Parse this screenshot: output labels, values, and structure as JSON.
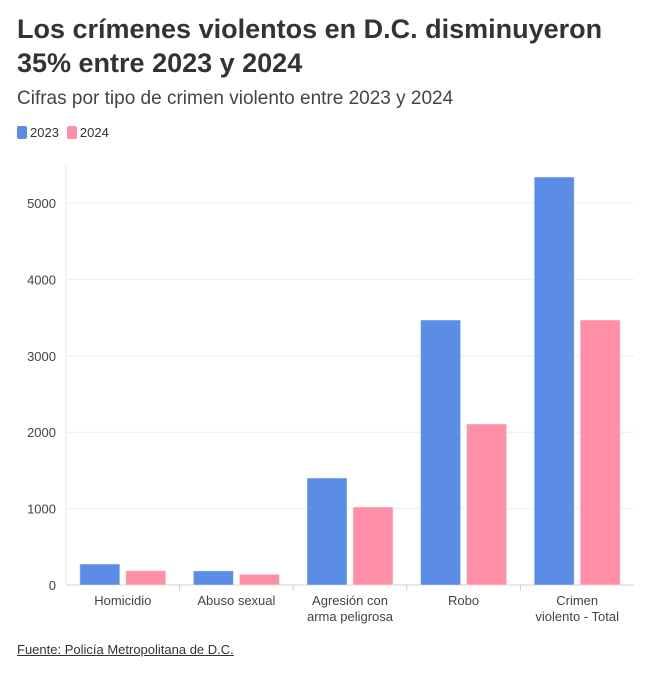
{
  "title": "Los crímenes violentos en D.C. disminuyeron 35% entre 2023 y 2024",
  "subtitle": "Cifras por tipo de crimen violento entre 2023 y 2024",
  "source": "Fuente: Policía Metropolitana de D.C.",
  "chart_data": {
    "type": "bar",
    "categories": [
      [
        "Homicidio"
      ],
      [
        "Abuso sexual"
      ],
      [
        "Agresión con",
        "arma peligrosa"
      ],
      [
        "Robo"
      ],
      [
        "Crimen",
        "violento - Total"
      ]
    ],
    "series": [
      {
        "name": "2023",
        "color": "#5b8de6",
        "values": [
          274,
          185,
          1400,
          3468,
          5340
        ]
      },
      {
        "name": "2024",
        "color": "#ff8fa6",
        "values": [
          187,
          140,
          1021,
          2107,
          3468
        ]
      }
    ],
    "yticks": [
      0,
      1000,
      2000,
      3000,
      4000,
      5000
    ],
    "ylim": [
      0,
      5500
    ],
    "grid": true,
    "legend": "top-left"
  }
}
